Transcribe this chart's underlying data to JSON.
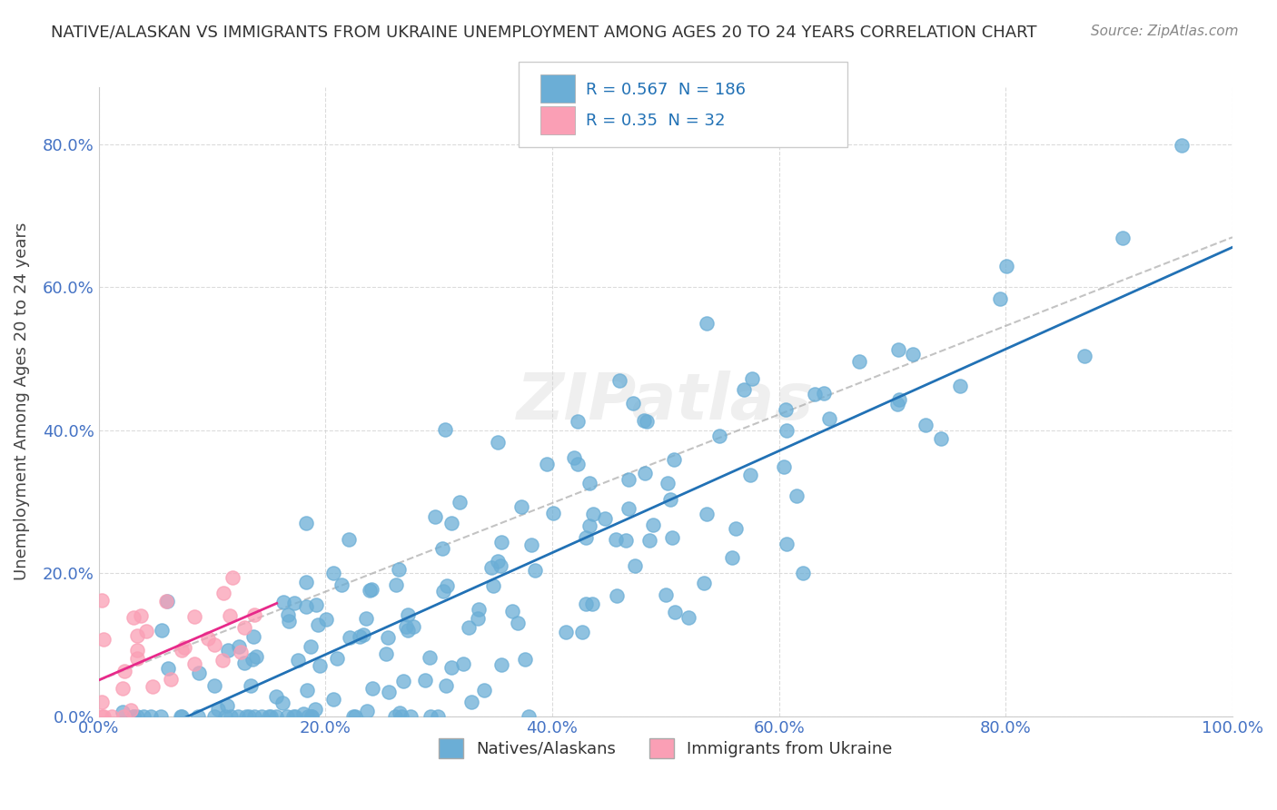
{
  "title": "NATIVE/ALASKAN VS IMMIGRANTS FROM UKRAINE UNEMPLOYMENT AMONG AGES 20 TO 24 YEARS CORRELATION CHART",
  "source": "Source: ZipAtlas.com",
  "xlabel": "",
  "ylabel": "Unemployment Among Ages 20 to 24 years",
  "xlim": [
    0.0,
    1.0
  ],
  "ylim": [
    0.0,
    0.88
  ],
  "xticks": [
    0.0,
    0.2,
    0.4,
    0.6,
    0.8,
    1.0
  ],
  "yticks": [
    0.0,
    0.2,
    0.4,
    0.6,
    0.8
  ],
  "xtick_labels": [
    "0.0%",
    "20.0%",
    "40.0%",
    "60.0%",
    "80.0%",
    "100.0%"
  ],
  "ytick_labels": [
    "0.0%",
    "20.0%",
    "40.0%",
    "60.0%",
    "80.0%"
  ],
  "blue_color": "#6baed6",
  "blue_line_color": "#2171b5",
  "pink_color": "#fa9fb5",
  "pink_line_color": "#e7298a",
  "blue_R": 0.567,
  "blue_N": 186,
  "pink_R": 0.35,
  "pink_N": 32,
  "watermark": "ZIPatlas",
  "legend_label_blue": "Natives/Alaskans",
  "legend_label_pink": "Immigrants from Ukraine",
  "background_color": "#ffffff",
  "grid_color": "#cccccc",
  "title_color": "#333333",
  "axis_label_color": "#444444",
  "tick_color": "#4472c4",
  "seed_blue": 42,
  "seed_pink": 7,
  "n_blue": 186,
  "n_pink": 32
}
